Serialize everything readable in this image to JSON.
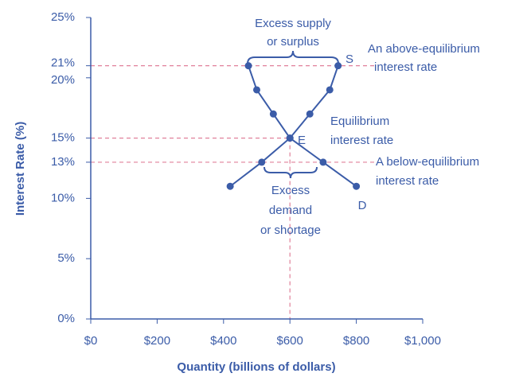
{
  "chart_data": {
    "type": "line",
    "x_label": "Quantity (billions of dollars)",
    "y_label": "Interest Rate (%)",
    "xlim": [
      0,
      1000
    ],
    "ylim": [
      0,
      25
    ],
    "xticks": [
      {
        "value": 0,
        "label": "$0"
      },
      {
        "value": 200,
        "label": "$200"
      },
      {
        "value": 400,
        "label": "$400"
      },
      {
        "value": 600,
        "label": "$600"
      },
      {
        "value": 800,
        "label": "$800"
      },
      {
        "value": 1000,
        "label": "$1,000"
      }
    ],
    "yticks": [
      {
        "value": 0,
        "label": "0%"
      },
      {
        "value": 5,
        "label": "5%"
      },
      {
        "value": 10,
        "label": "10%"
      },
      {
        "value": 13,
        "label": "13%"
      },
      {
        "value": 15,
        "label": "15%"
      },
      {
        "value": 20,
        "label": "20%"
      },
      {
        "value": 21,
        "label": "21%"
      },
      {
        "value": 25,
        "label": "25%"
      }
    ],
    "series": [
      {
        "name": "D",
        "color": "#3b5ca8",
        "x": [
          475,
          500,
          550,
          600,
          700,
          800
        ],
        "values": [
          21,
          19,
          17,
          15,
          13,
          11
        ]
      },
      {
        "name": "S",
        "color": "#3b5ca8",
        "x": [
          420,
          515,
          660,
          600,
          720,
          745
        ],
        "values": [
          11,
          13,
          17,
          15,
          19,
          21
        ]
      }
    ],
    "reference_lines": {
      "color": "#e0809a",
      "y": [
        21,
        15,
        13
      ],
      "x": [
        600
      ]
    },
    "equilibrium_label": "E",
    "annotations": [
      {
        "lines": [
          "Excess supply",
          "or surplus"
        ]
      },
      {
        "lines": [
          "An above-equilibrium",
          "interest rate"
        ]
      },
      {
        "lines": [
          "Equilibrium",
          "interest rate"
        ]
      },
      {
        "lines": [
          "A below-equilibrium",
          "interest rate"
        ]
      },
      {
        "lines": [
          "Excess",
          "demand",
          "or shortage"
        ]
      }
    ]
  }
}
